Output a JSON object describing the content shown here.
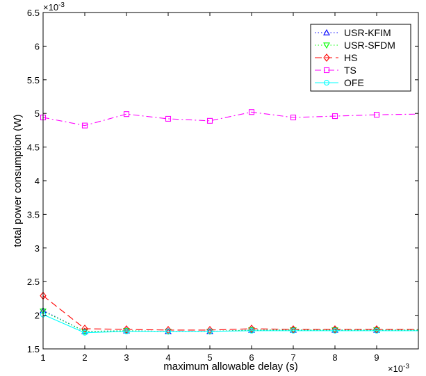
{
  "chart_data": {
    "type": "line",
    "xlabel": "maximum allowable delay (s)",
    "ylabel": "total power consumption (W)",
    "x_exponent": "×10",
    "x_exponent_power": "-3",
    "y_exponent": "×10",
    "y_exponent_power": "-3",
    "xlim": [
      1,
      10
    ],
    "ylim": [
      1.5,
      6.5
    ],
    "x_ticks": [
      1,
      2,
      3,
      4,
      5,
      6,
      7,
      8,
      9
    ],
    "x_tick_labels": [
      "1",
      "2",
      "3",
      "4",
      "5",
      "6",
      "7",
      "8",
      "9"
    ],
    "y_ticks": [
      1.5,
      2,
      2.5,
      3,
      3.5,
      4,
      4.5,
      5,
      5.5,
      6,
      6.5
    ],
    "y_tick_labels": [
      "1.5",
      "2",
      "2.5",
      "3",
      "3.5",
      "4",
      "4.5",
      "5",
      "5.5",
      "6",
      "6.5"
    ],
    "grid": false,
    "legend_position": "top-right",
    "x": [
      1,
      2,
      3,
      4,
      5,
      6,
      7,
      8,
      9,
      10
    ],
    "series": [
      {
        "name": "USR-KFIM",
        "color": "#0000ff",
        "dash": "dotted",
        "marker": "triangle-up",
        "values": [
          2.07,
          1.76,
          1.77,
          1.76,
          1.76,
          1.78,
          1.78,
          1.78,
          1.78,
          1.78
        ]
      },
      {
        "name": "USR-SFDM",
        "color": "#00ff00",
        "dash": "dotted",
        "marker": "triangle-down",
        "values": [
          2.06,
          1.76,
          1.77,
          1.76,
          1.76,
          1.78,
          1.78,
          1.78,
          1.78,
          1.78
        ]
      },
      {
        "name": "HS",
        "color": "#ff0000",
        "dash": "dashed",
        "marker": "diamond",
        "values": [
          2.29,
          1.8,
          1.79,
          1.78,
          1.78,
          1.8,
          1.79,
          1.79,
          1.79,
          1.79
        ]
      },
      {
        "name": "TS",
        "color": "#ff00ff",
        "dash": "dashdot",
        "marker": "square",
        "values": [
          4.94,
          4.82,
          4.99,
          4.92,
          4.89,
          5.02,
          4.94,
          4.96,
          4.98,
          4.99
        ]
      },
      {
        "name": "OFE",
        "color": "#00ffff",
        "dash": "solid",
        "marker": "circle",
        "values": [
          2.01,
          1.74,
          1.76,
          1.76,
          1.76,
          1.77,
          1.77,
          1.77,
          1.77,
          1.77
        ]
      }
    ]
  }
}
